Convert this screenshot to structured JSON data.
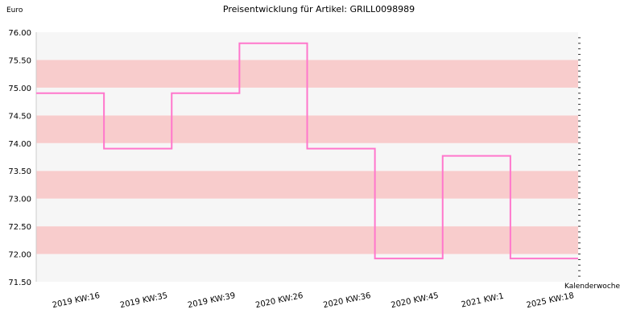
{
  "chart_data": {
    "type": "line",
    "title": "Preisentwicklung für Artikel: GRILL0098989",
    "ylabel": "Euro",
    "xlabel": "Kalenderwoche",
    "categories": [
      "2019 KW:16",
      "2019 KW:35",
      "2019 KW:39",
      "2020 KW:26",
      "2020 KW:36",
      "2020 KW:45",
      "2021 KW:1",
      "2025 KW:18"
    ],
    "values": [
      74.9,
      73.9,
      74.9,
      75.8,
      73.9,
      71.92,
      73.77,
      71.92
    ],
    "ylim": [
      71.5,
      76.0
    ],
    "yticks": [
      "71.50",
      "72.00",
      "72.50",
      "73.00",
      "73.50",
      "74.00",
      "74.50",
      "75.00",
      "75.50",
      "76.00"
    ],
    "line_style": "step",
    "series_color": "#ff77cc",
    "band_color_a": "#f8cccc",
    "band_color_b": "#f6f6f6",
    "grid": true
  }
}
